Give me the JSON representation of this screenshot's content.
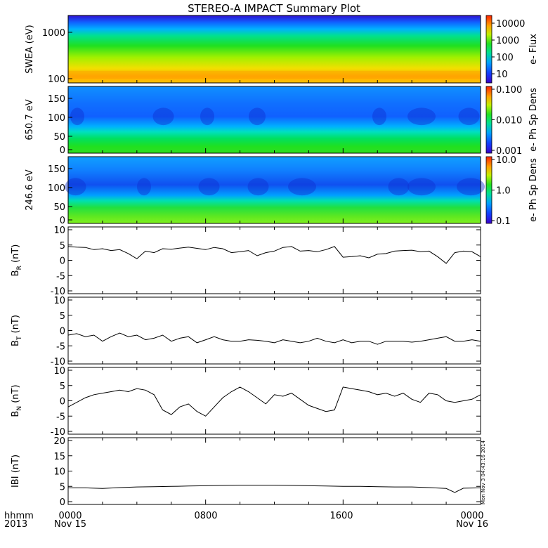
{
  "title": "STEREO-A IMPACT Summary Plot",
  "timestamp_label": "Mon Nov  3 04:43:16 2014",
  "footer": {
    "left_top": "hhmm",
    "left_bottom": "2013",
    "x_ticks": [
      "0000",
      "0800",
      "1600",
      "0000"
    ],
    "date_start": "Nov 15",
    "date_end": "Nov 16"
  },
  "colors": {
    "line": "#000000"
  },
  "chart_data": [
    {
      "type": "heatmap",
      "id": "swea",
      "ylabel": "SWEA (eV)",
      "ytick_labels": [
        "1000",
        "100"
      ],
      "yscale": "log",
      "colorbar_label": "e- Flux",
      "colorbar_ticks": [
        "10000",
        "1000",
        "100",
        "10"
      ],
      "colorbar_scale": "log",
      "colorbar_range": [
        3,
        30000
      ],
      "description_of_pattern": "high flux (yellow/orange) at low energy ~100 eV, decreasing to blue/purple at ~1500 eV"
    },
    {
      "type": "heatmap",
      "id": "pad650",
      "ylabel": "650.7 eV",
      "ytick_labels": [
        "150",
        "100",
        "50",
        "0"
      ],
      "ylim": [
        0,
        180
      ],
      "colorbar_label": "e- Ph Sp Dens",
      "colorbar_ticks": [
        "0.100",
        "0.010",
        "0.001"
      ],
      "colorbar_scale": "log",
      "colorbar_range": [
        0.001,
        0.1
      ]
    },
    {
      "type": "heatmap",
      "id": "pad246",
      "ylabel": "246.6 eV",
      "ytick_labels": [
        "150",
        "100",
        "50",
        "0"
      ],
      "ylim": [
        0,
        180
      ],
      "colorbar_label": "e- Ph Sp Dens",
      "colorbar_ticks": [
        "10.0",
        "1.0",
        "0.1"
      ],
      "colorbar_scale": "log",
      "colorbar_range": [
        0.1,
        10
      ]
    },
    {
      "type": "line",
      "id": "br",
      "ylabel_main": "B",
      "ylabel_sub": "R",
      "ylabel_unit": "(nT)",
      "ylim": [
        -10,
        10
      ],
      "yticks": [
        10,
        5,
        0,
        -5,
        -10
      ],
      "x_hours": [
        0,
        0.5,
        1,
        1.5,
        2,
        2.5,
        3,
        3.5,
        4,
        4.5,
        5,
        5.5,
        6,
        6.5,
        7,
        7.5,
        8,
        8.5,
        9,
        9.5,
        10,
        10.5,
        11,
        11.5,
        12,
        12.5,
        13,
        13.5,
        14,
        14.5,
        15,
        15.5,
        16,
        16.5,
        17,
        17.5,
        18,
        18.5,
        19,
        19.5,
        20,
        20.5,
        21,
        21.5,
        22,
        22.5,
        23,
        23.5,
        24
      ],
      "values": [
        4.5,
        4.3,
        4.2,
        3.5,
        3.8,
        3.2,
        3.5,
        2.2,
        0.5,
        3.0,
        2.5,
        3.8,
        3.6,
        4.0,
        4.3,
        3.9,
        3.5,
        4.2,
        3.8,
        2.5,
        2.8,
        3.2,
        1.5,
        2.5,
        3.0,
        4.2,
        4.5,
        3.0,
        3.2,
        2.8,
        3.5,
        4.5,
        1.0,
        1.2,
        1.5,
        0.8,
        2.0,
        2.2,
        3.0,
        3.2,
        3.3,
        2.8,
        3.0,
        1.2,
        -1.0,
        2.5,
        3.0,
        2.8,
        1.2
      ]
    },
    {
      "type": "line",
      "id": "bt",
      "ylabel_main": "B",
      "ylabel_sub": "T",
      "ylabel_unit": "(nT)",
      "ylim": [
        -10,
        10
      ],
      "yticks": [
        10,
        5,
        0,
        -5,
        -10
      ],
      "x_hours": [
        0,
        0.5,
        1,
        1.5,
        2,
        2.5,
        3,
        3.5,
        4,
        4.5,
        5,
        5.5,
        6,
        6.5,
        7,
        7.5,
        8,
        8.5,
        9,
        9.5,
        10,
        10.5,
        11,
        11.5,
        12,
        12.5,
        13,
        13.5,
        14,
        14.5,
        15,
        15.5,
        16,
        16.5,
        17,
        17.5,
        18,
        18.5,
        19,
        19.5,
        20,
        20.5,
        21,
        21.5,
        22,
        22.5,
        23,
        23.5,
        24
      ],
      "values": [
        -1.5,
        -1.0,
        -2.0,
        -1.5,
        -3.5,
        -2.0,
        -0.8,
        -2.0,
        -1.5,
        -3.0,
        -2.5,
        -1.5,
        -3.5,
        -2.5,
        -2.0,
        -4.0,
        -3.0,
        -2.0,
        -3.0,
        -3.5,
        -3.5,
        -3.0,
        -3.2,
        -3.5,
        -4.0,
        -3.0,
        -3.5,
        -4.0,
        -3.5,
        -2.5,
        -3.5,
        -4.0,
        -3.0,
        -4.0,
        -3.5,
        -3.5,
        -4.5,
        -3.5,
        -3.5,
        -3.5,
        -3.8,
        -3.5,
        -3.0,
        -2.5,
        -2.0,
        -3.5,
        -3.5,
        -3.0,
        -3.5
      ]
    },
    {
      "type": "line",
      "id": "bn",
      "ylabel_main": "B",
      "ylabel_sub": "N",
      "ylabel_unit": "(nT)",
      "ylim": [
        -10,
        10
      ],
      "yticks": [
        10,
        5,
        0,
        -5,
        -10
      ],
      "x_hours": [
        0,
        0.5,
        1,
        1.5,
        2,
        2.5,
        3,
        3.5,
        4,
        4.5,
        5,
        5.5,
        6,
        6.5,
        7,
        7.5,
        8,
        8.5,
        9,
        9.5,
        10,
        10.5,
        11,
        11.5,
        12,
        12.5,
        13,
        13.5,
        14,
        14.5,
        15,
        15.5,
        16,
        16.5,
        17,
        17.5,
        18,
        18.5,
        19,
        19.5,
        20,
        20.5,
        21,
        21.5,
        22,
        22.5,
        23,
        23.5,
        24
      ],
      "values": [
        -2.0,
        -0.5,
        1.0,
        2.0,
        2.5,
        3.0,
        3.5,
        3.0,
        4.0,
        3.5,
        2.0,
        -3.0,
        -4.5,
        -2.0,
        -1.0,
        -3.5,
        -5.0,
        -2.0,
        1.0,
        3.0,
        4.5,
        3.0,
        1.0,
        -1.0,
        2.0,
        1.5,
        2.5,
        0.5,
        -1.5,
        -2.5,
        -3.5,
        -3.0,
        4.5,
        4.0,
        3.5,
        3.0,
        2.0,
        2.5,
        1.5,
        2.5,
        0.5,
        -0.5,
        2.5,
        2.0,
        0.0,
        -0.5,
        0.0,
        0.5,
        2.0
      ]
    },
    {
      "type": "line",
      "id": "bmag",
      "ylabel_main": "IBI",
      "ylabel_sub": "",
      "ylabel_unit": "(nT)",
      "ylim": [
        0,
        20
      ],
      "yticks": [
        20,
        15,
        10,
        5,
        0
      ],
      "x_hours": [
        0,
        1,
        2,
        3,
        4,
        5,
        6,
        7,
        8,
        9,
        10,
        11,
        12,
        13,
        14,
        15,
        16,
        17,
        18,
        19,
        20,
        21,
        22,
        22.5,
        23,
        24
      ],
      "values": [
        4.5,
        4.5,
        4.3,
        4.6,
        4.8,
        4.9,
        5.0,
        5.1,
        5.2,
        5.3,
        5.4,
        5.4,
        5.4,
        5.3,
        5.2,
        5.1,
        5.0,
        5.0,
        4.9,
        4.8,
        4.8,
        4.6,
        4.3,
        3.0,
        4.4,
        4.5
      ]
    }
  ]
}
